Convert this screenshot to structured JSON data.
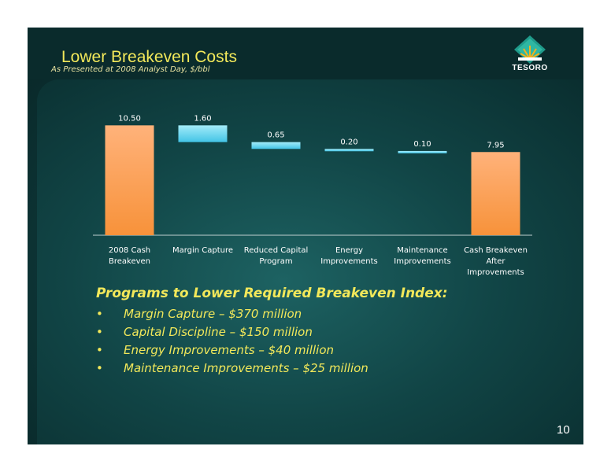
{
  "slide": {
    "title": "Lower Breakeven Costs",
    "logo_text": "TESORO",
    "subtitle": "As Presented at 2008 Analyst Day, $/bbl",
    "page_number": "10"
  },
  "chart_data": {
    "type": "bar",
    "subtype": "waterfall",
    "categories": [
      [
        "2008 Cash",
        "Breakeven"
      ],
      [
        "Margin Capture"
      ],
      [
        "Reduced Capital",
        "Program"
      ],
      [
        "Energy",
        "Improvements"
      ],
      [
        "Maintenance",
        "Improvements"
      ],
      [
        "Cash Breakeven",
        "After",
        "Improvements"
      ]
    ],
    "values": [
      10.5,
      1.6,
      0.65,
      0.2,
      0.1,
      7.95
    ],
    "labels": [
      "10.50",
      "1.60",
      "0.65",
      "0.20",
      "0.10",
      "7.95"
    ],
    "bar_kinds": [
      "total",
      "decrease",
      "decrease",
      "decrease",
      "decrease",
      "total"
    ],
    "colors": {
      "total": "#f7923a",
      "decrease": "#43c4e6"
    }
  },
  "bullets": {
    "heading": "Programs to Lower Required Breakeven Index:",
    "marker": "•",
    "items": [
      "Margin Capture – $370 million",
      "Capital Discipline – $150 million",
      "Energy Improvements – $40 million",
      "Maintenance Improvements –  $25 million"
    ]
  }
}
